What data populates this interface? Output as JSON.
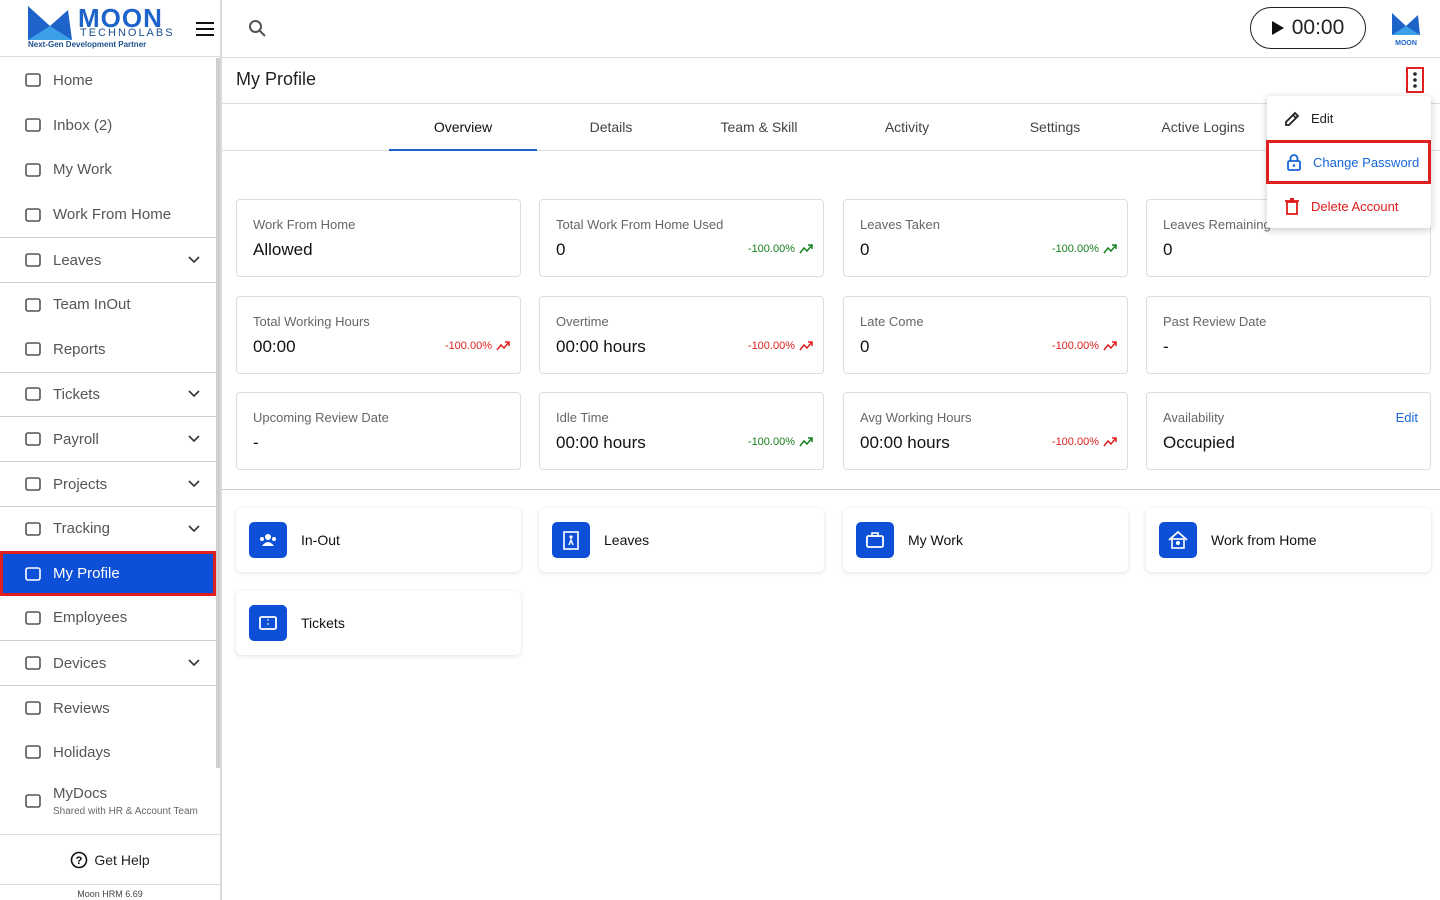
{
  "logo": {
    "name": "MOON",
    "sub": "TECHNOLABS",
    "tagline": "Next-Gen Development Partner"
  },
  "avatar": "MOON",
  "timer": "00:00",
  "sidebar": {
    "items": [
      {
        "label": "Home"
      },
      {
        "label": "Inbox (2)"
      },
      {
        "label": "My Work"
      },
      {
        "label": "Work From Home"
      },
      {
        "label": "Leaves",
        "expandable": true
      },
      {
        "label": "Team InOut"
      },
      {
        "label": "Reports"
      },
      {
        "label": "Tickets",
        "expandable": true
      },
      {
        "label": "Payroll",
        "expandable": true
      },
      {
        "label": "Projects",
        "expandable": true
      },
      {
        "label": "Tracking",
        "expandable": true
      },
      {
        "label": "My Profile",
        "active": true
      },
      {
        "label": "Employees"
      },
      {
        "label": "Devices",
        "expandable": true
      },
      {
        "label": "Reviews"
      },
      {
        "label": "Holidays"
      },
      {
        "label": "MyDocs",
        "sublabel": "Shared with HR & Account Team"
      }
    ],
    "help": "Get Help",
    "version": "Moon HRM 6.69"
  },
  "page": {
    "title": "My Profile"
  },
  "tabs": {
    "items": [
      "Overview",
      "Details",
      "Team & Skill",
      "Activity",
      "Settings",
      "Active Logins"
    ],
    "selected": 0
  },
  "menu": [
    {
      "label": "Edit",
      "color": "#222222"
    },
    {
      "label": "Change Password",
      "color": "#1565d8",
      "highlighted": true
    },
    {
      "label": "Delete Account",
      "color": "#e01b1b"
    }
  ],
  "stats": [
    {
      "label": "Work From Home",
      "value": "Allowed"
    },
    {
      "label": "Total Work From Home Used",
      "value": "0",
      "change": "-100.00%",
      "color": "#17801f"
    },
    {
      "label": "Leaves Taken",
      "value": "0",
      "change": "-100.00%",
      "color": "#17801f"
    },
    {
      "label": "Leaves Remaining",
      "value": "0"
    },
    {
      "label": "Total Working Hours",
      "value": "00:00",
      "change": "-100.00%",
      "color": "#e0201f"
    },
    {
      "label": "Overtime",
      "value": "00:00 hours",
      "change": "-100.00%",
      "color": "#e0201f"
    },
    {
      "label": "Late Come",
      "value": "0",
      "change": "-100.00%",
      "color": "#e0201f"
    },
    {
      "label": "Past Review Date",
      "value": "-"
    },
    {
      "label": "Upcoming Review Date",
      "value": "-"
    },
    {
      "label": "Idle Time",
      "value": "00:00 hours",
      "change": "-100.00%",
      "color": "#17801f"
    },
    {
      "label": "Avg Working Hours",
      "value": "00:00 hours",
      "change": "-100.00%",
      "color": "#e0201f"
    },
    {
      "label": "Availability",
      "value": "Occupied",
      "action": "Edit"
    }
  ],
  "shortcuts": [
    "In-Out",
    "Leaves",
    "My Work",
    "Work from Home",
    "Tickets"
  ]
}
